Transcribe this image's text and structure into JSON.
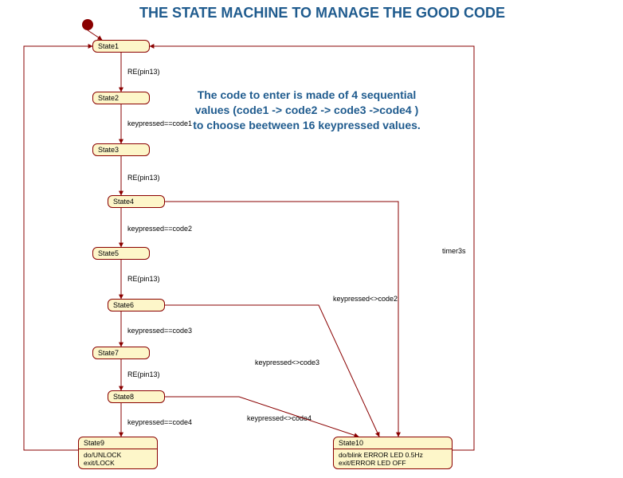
{
  "title": "THE STATE MACHINE TO MANAGE THE GOOD CODE",
  "description": "The code to enter is made of 4 sequential values (code1 -> code2 -> code3 ->code4 ) to choose beetween 16 keypressed values.",
  "colors": {
    "node_fill": "#fdf6c9",
    "node_border": "#8a0000",
    "edge": "#8a0000",
    "title": "#1f5b8e",
    "bg": "#ffffff"
  },
  "nodes": {
    "state1": {
      "label": "State1"
    },
    "state2": {
      "label": "State2"
    },
    "state3": {
      "label": "State3"
    },
    "state4": {
      "label": "State4"
    },
    "state5": {
      "label": "State5"
    },
    "state6": {
      "label": "State6"
    },
    "state7": {
      "label": "State7"
    },
    "state8": {
      "label": "State8"
    },
    "state9": {
      "label": "State9",
      "actions": "do/UNLOCK\nexit/LOCK"
    },
    "state10": {
      "label": "State10",
      "actions": "do/blink ERROR LED 0.5Hz\nexit/ERROR LED OFF"
    }
  },
  "edge_labels": {
    "e_init": "",
    "e_1_2": "RE(pin13)",
    "e_2_3": "keypressed==code1",
    "e_3_4": "RE(pin13)",
    "e_4_5": "keypressed==code2",
    "e_5_6": "RE(pin13)",
    "e_6_7": "keypressed==code3",
    "e_7_8": "RE(pin13)",
    "e_8_9": "keypressed==code4",
    "e_4_10": "keypressed<>code2",
    "e_6_10": "keypressed<>code3",
    "e_8_10": "keypressed<>code4",
    "e_10_1": "timer3s",
    "e_9_1": ""
  }
}
